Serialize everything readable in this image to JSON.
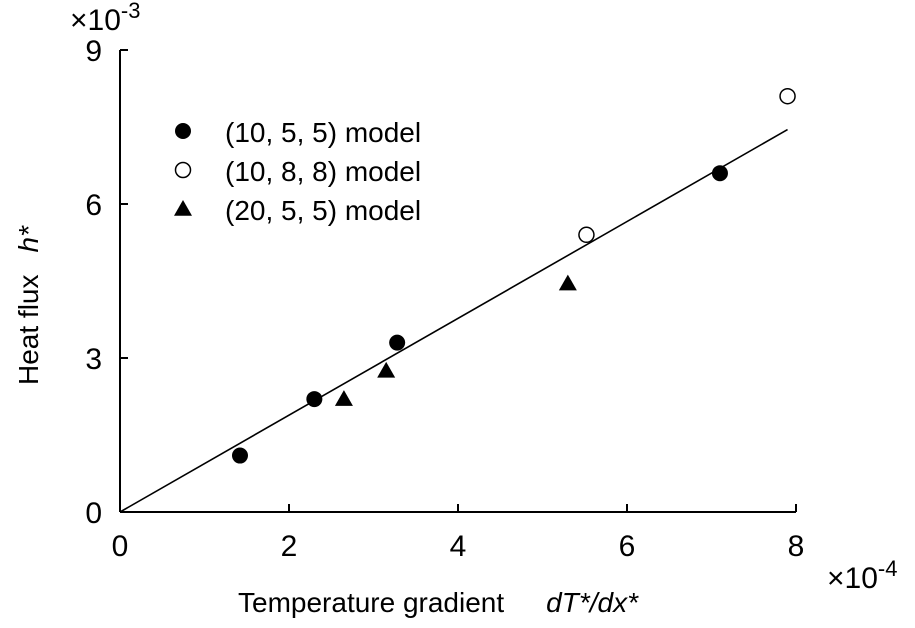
{
  "chart_data": {
    "type": "scatter",
    "title": "",
    "xlabel": "Temperature gradient",
    "xlabel_symbol": "dT*/dx*",
    "ylabel": "Heat flux",
    "ylabel_symbol": "h*",
    "x_multiplier": {
      "base": "×10",
      "exp": "-4"
    },
    "y_multiplier": {
      "base": "×10",
      "exp": "-3"
    },
    "xlim": [
      0,
      8
    ],
    "ylim": [
      0,
      9
    ],
    "x_ticks": [
      "0",
      "2",
      "4",
      "6",
      "8"
    ],
    "y_ticks": [
      "0",
      "3",
      "6",
      "9"
    ],
    "grid": false,
    "legend_position": "top-left",
    "series": [
      {
        "name": "(10, 5, 5) model",
        "marker": "filled-circle",
        "points": [
          [
            1.42,
            1.1
          ],
          [
            2.3,
            2.2
          ],
          [
            3.28,
            3.3
          ],
          [
            7.1,
            6.6
          ]
        ]
      },
      {
        "name": "(10, 8, 8) model",
        "marker": "open-circle",
        "points": [
          [
            5.52,
            5.4
          ],
          [
            7.9,
            8.1
          ]
        ]
      },
      {
        "name": "(20, 5, 5) model",
        "marker": "filled-triangle",
        "points": [
          [
            2.65,
            2.2
          ],
          [
            3.15,
            2.75
          ],
          [
            5.3,
            4.45
          ]
        ]
      }
    ],
    "fit_line": {
      "from": [
        0,
        0
      ],
      "to": [
        7.9,
        7.45
      ]
    }
  }
}
